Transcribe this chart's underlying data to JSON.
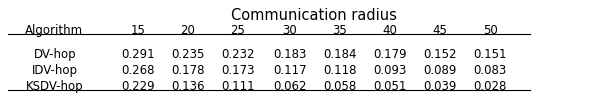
{
  "title": "Communication radius",
  "col_header": [
    "Algorithm",
    "15",
    "20",
    "25",
    "30",
    "35",
    "40",
    "45",
    "50"
  ],
  "rows": [
    [
      "DV-hop",
      "0.291",
      "0.235",
      "0.232",
      "0.183",
      "0.184",
      "0.179",
      "0.152",
      "0.151"
    ],
    [
      "IDV-hop",
      "0.268",
      "0.178",
      "0.173",
      "0.117",
      "0.118",
      "0.093",
      "0.089",
      "0.083"
    ],
    [
      "KSDV-hop",
      "0.229",
      "0.136",
      "0.111",
      "0.062",
      "0.058",
      "0.051",
      "0.039",
      "0.028"
    ]
  ],
  "bg_color": "#ffffff",
  "text_color": "#000000",
  "font_size": 8.5,
  "title_font_size": 10.5,
  "fig_width": 5.94,
  "fig_height": 0.96
}
